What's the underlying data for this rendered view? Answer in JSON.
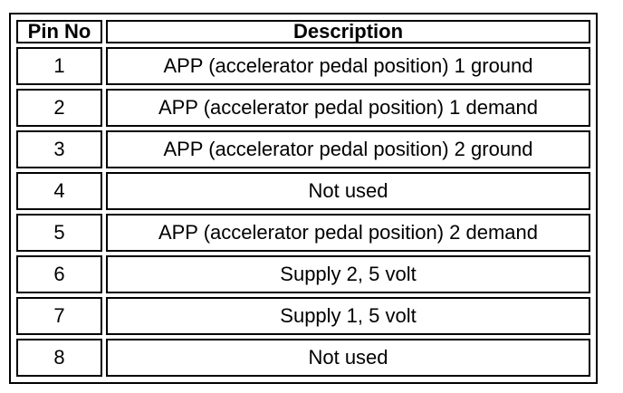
{
  "table": {
    "headers": [
      "Pin No",
      "Description"
    ],
    "rows": [
      {
        "pin": "1",
        "description": "APP (accelerator pedal position) 1 ground"
      },
      {
        "pin": "2",
        "description": "APP (accelerator pedal position) 1 demand"
      },
      {
        "pin": "3",
        "description": "APP (accelerator pedal position) 2 ground"
      },
      {
        "pin": "4",
        "description": "Not used"
      },
      {
        "pin": "5",
        "description": "APP (accelerator pedal position) 2 demand"
      },
      {
        "pin": "6",
        "description": "Supply 2, 5 volt"
      },
      {
        "pin": "7",
        "description": "Supply 1, 5 volt"
      },
      {
        "pin": "8",
        "description": "Not used"
      }
    ]
  }
}
